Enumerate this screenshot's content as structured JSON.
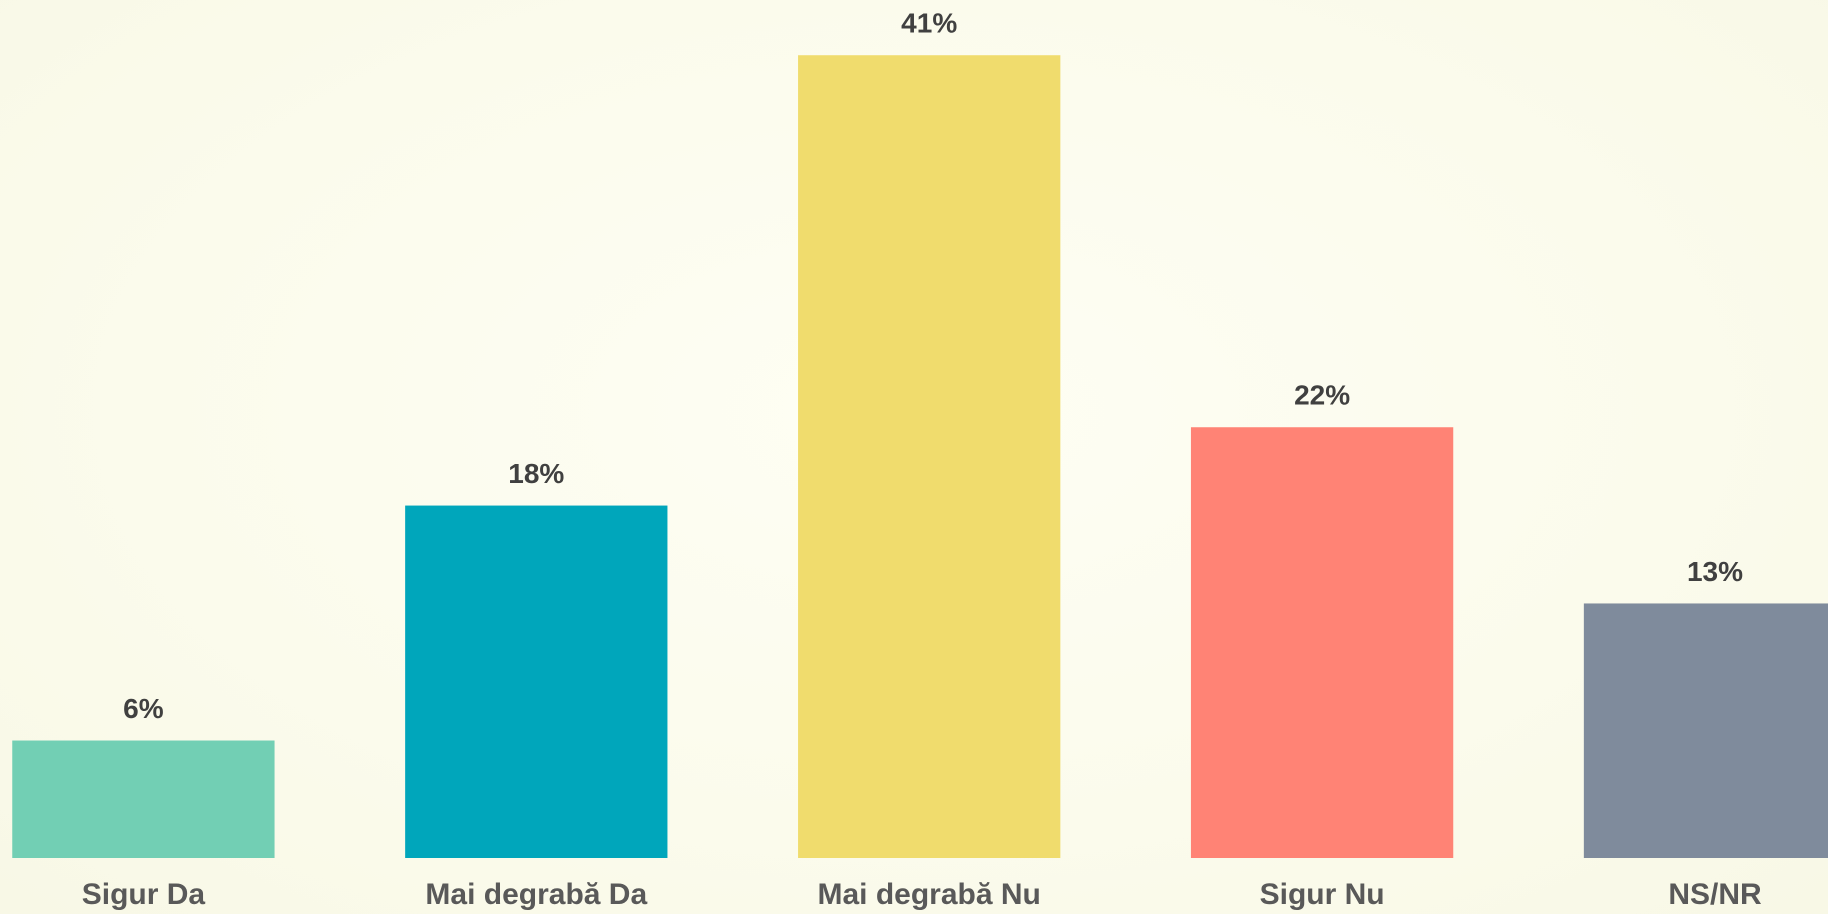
{
  "chart_data": {
    "type": "bar",
    "categories": [
      "Sigur Da",
      "Mai degrabă Da",
      "Mai degrabă Nu",
      "Sigur Nu",
      "NS/NR"
    ],
    "values": [
      6,
      18,
      41,
      22,
      13
    ],
    "value_labels": [
      "6%",
      "18%",
      "41%",
      "22%",
      "13%"
    ],
    "colors": [
      "#72cfb4",
      "#00a6bb",
      "#f0dc6d",
      "#ff8375",
      "#7f8b9c"
    ]
  }
}
